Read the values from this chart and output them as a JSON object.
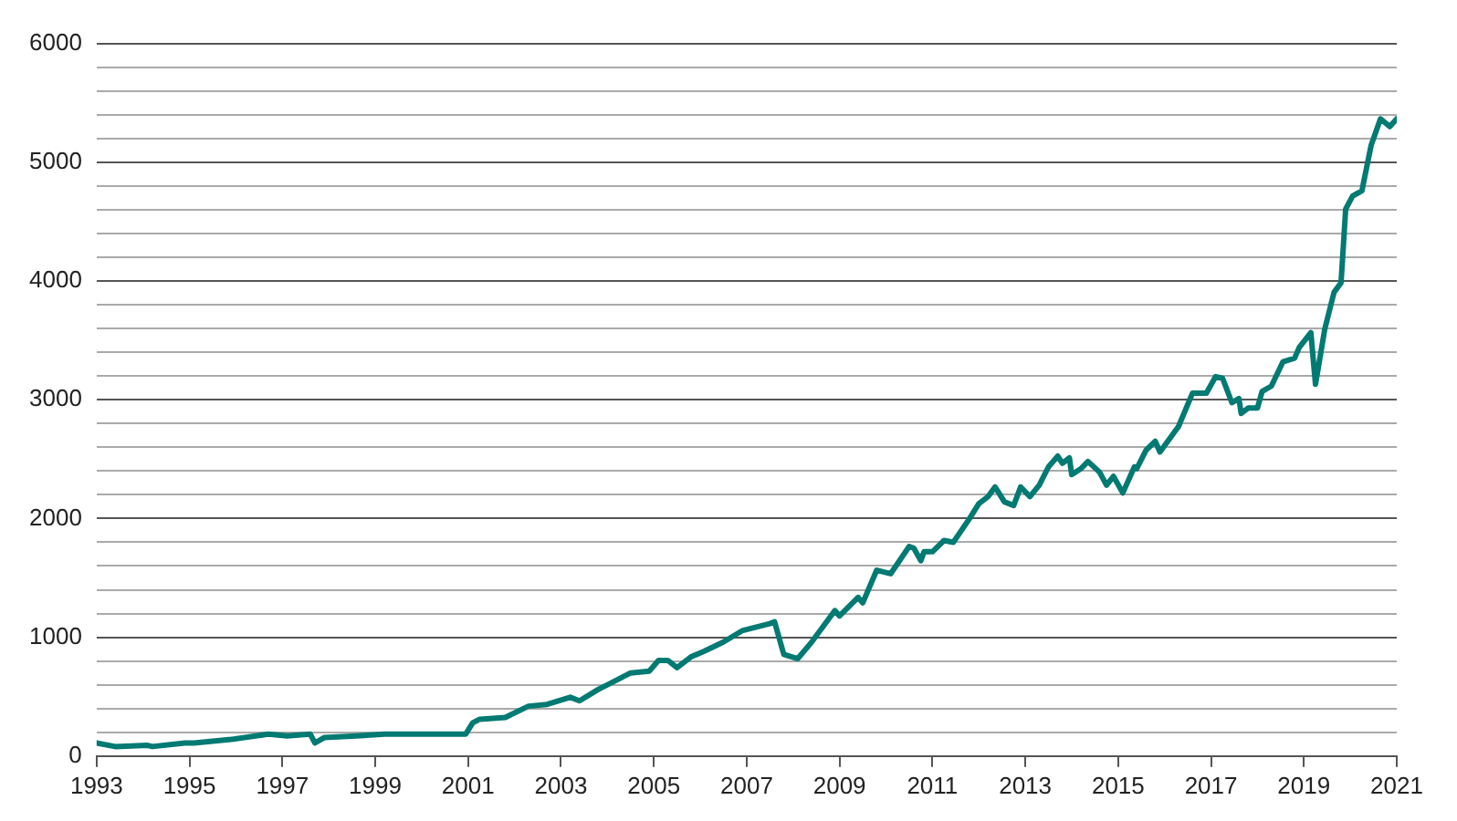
{
  "chart_data": {
    "type": "line",
    "xlim": [
      1993,
      2021
    ],
    "xticks": [
      1993,
      1995,
      1997,
      1999,
      2001,
      2003,
      2005,
      2007,
      2009,
      2011,
      2013,
      2015,
      2017,
      2019,
      2021
    ],
    "ylim": [
      0,
      6000
    ],
    "yticks": [
      0,
      {
        "value": 200,
        "label": null
      },
      {
        "value": 400,
        "label": null
      },
      {
        "value": 600,
        "label": null
      },
      {
        "value": 800,
        "label": null
      },
      1000,
      {
        "value": 1200,
        "label": null
      },
      {
        "value": 1400,
        "label": null
      },
      {
        "value": 1600,
        "label": null
      },
      {
        "value": 1800,
        "label": null
      },
      2000,
      {
        "value": 2200,
        "label": null
      },
      {
        "value": 2400,
        "label": null
      },
      {
        "value": 2600,
        "label": null
      },
      {
        "value": 2800,
        "label": null
      },
      3000,
      {
        "value": 3200,
        "label": null
      },
      {
        "value": 3400,
        "label": null
      },
      {
        "value": 3600,
        "label": null
      },
      {
        "value": 3800,
        "label": null
      },
      4000,
      {
        "value": 4200,
        "label": null
      },
      {
        "value": 4400,
        "label": null
      },
      {
        "value": 4600,
        "label": null
      },
      {
        "value": 4800,
        "label": null
      },
      5000,
      {
        "value": 5200,
        "label": null
      },
      {
        "value": 5400,
        "label": null
      },
      {
        "value": 5600,
        "label": null
      },
      {
        "value": 5800,
        "label": null
      },
      6000
    ],
    "grid": "y",
    "legend": false,
    "marker": "none",
    "line_style": "solid",
    "series": [
      {
        "color": "#007a72",
        "x": [
          1993.0,
          1993.4,
          1994.1,
          1994.2,
          1994.9,
          1995.1,
          1995.9,
          1996.7,
          1997.1,
          1997.6,
          1997.7,
          1997.9,
          1998.6,
          1999.2,
          2000.95,
          2001.1,
          2001.25,
          2001.8,
          2002.3,
          2002.7,
          2003.2,
          2003.4,
          2003.8,
          2004.1,
          2004.5,
          2004.9,
          2005.1,
          2005.3,
          2005.5,
          2005.8,
          2006.1,
          2006.5,
          2006.9,
          2007.5,
          2007.6,
          2007.8,
          2008.1,
          2008.4,
          2008.9,
          2009.0,
          2009.4,
          2009.5,
          2009.8,
          2010.1,
          2010.5,
          2010.6,
          2010.75,
          2010.82,
          2011.0,
          2011.25,
          2011.45,
          2011.8,
          2012.0,
          2012.2,
          2012.35,
          2012.4,
          2012.55,
          2012.75,
          2012.9,
          2013.1,
          2013.3,
          2013.5,
          2013.7,
          2013.8,
          2013.95,
          2014.0,
          2014.2,
          2014.35,
          2014.6,
          2014.75,
          2014.9,
          2015.1,
          2015.35,
          2015.4,
          2015.6,
          2015.8,
          2015.9,
          2016.3,
          2016.6,
          2016.9,
          2017.1,
          2017.25,
          2017.45,
          2017.6,
          2017.65,
          2017.8,
          2018.0,
          2018.1,
          2018.3,
          2018.55,
          2018.8,
          2018.9,
          2019.15,
          2019.25,
          2019.45,
          2019.65,
          2019.8,
          2019.9,
          2020.05,
          2020.25,
          2020.45,
          2020.65,
          2020.85,
          2021.0
        ],
        "values": [
          110,
          80,
          90,
          80,
          110,
          110,
          140,
          185,
          170,
          185,
          110,
          155,
          170,
          185,
          185,
          280,
          310,
          325,
          420,
          435,
          495,
          465,
          560,
          620,
          700,
          715,
          805,
          805,
          745,
          835,
          885,
          960,
          1055,
          1115,
          1130,
          855,
          820,
          960,
          1225,
          1180,
          1335,
          1290,
          1565,
          1535,
          1765,
          1750,
          1645,
          1720,
          1720,
          1815,
          1800,
          2000,
          2125,
          2185,
          2265,
          2235,
          2140,
          2110,
          2265,
          2185,
          2280,
          2435,
          2525,
          2465,
          2510,
          2370,
          2420,
          2480,
          2390,
          2280,
          2355,
          2215,
          2435,
          2420,
          2575,
          2650,
          2560,
          2775,
          3055,
          3055,
          3195,
          3180,
          2975,
          3010,
          2885,
          2930,
          2930,
          3070,
          3115,
          3320,
          3350,
          3440,
          3565,
          3130,
          3595,
          3905,
          3985,
          4605,
          4715,
          4760,
          5145,
          5365,
          5300,
          5365
        ]
      }
    ]
  }
}
